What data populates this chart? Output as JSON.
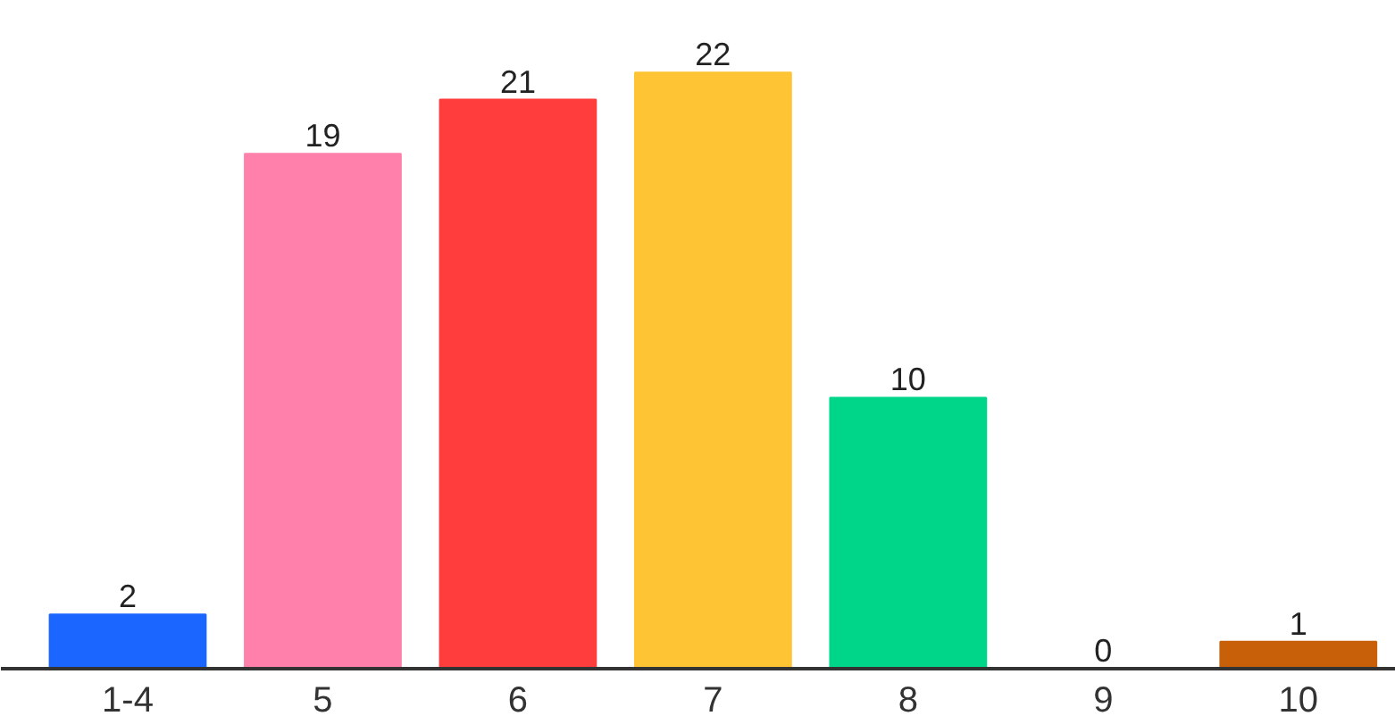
{
  "chart_data": {
    "type": "bar",
    "categories": [
      "1-4",
      "5",
      "6",
      "7",
      "8",
      "9",
      "10"
    ],
    "values": [
      2,
      19,
      21,
      22,
      10,
      0,
      1
    ],
    "colors": [
      "#1a66ff",
      "#ff80ab",
      "#ff3d3d",
      "#ffc433",
      "#00d68a",
      "#7a5af8",
      "#c8600a"
    ],
    "data_labels": true,
    "grid": false
  }
}
